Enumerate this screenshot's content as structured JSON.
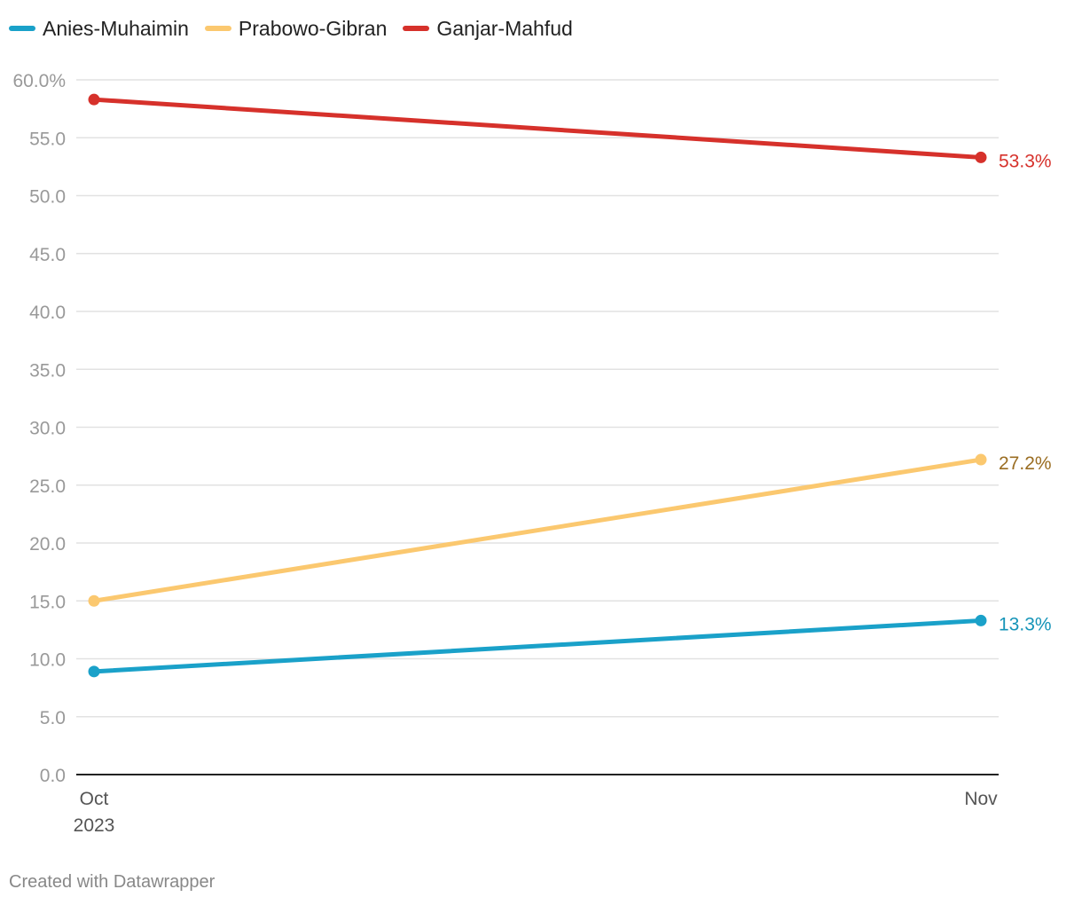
{
  "colors": {
    "Anies-Muhaimin": "#1aa1c9",
    "Prabowo-Gibran": "#fbc86f",
    "Ganjar-Mahfud": "#d6312b",
    "label_Anies-Muhaimin": "#1594b8",
    "label_Prabowo-Gibran": "#9a6d22",
    "label_Ganjar-Mahfud": "#d6312b",
    "grid": "#e2e2e2",
    "axis": "#222222",
    "tick": "#999999"
  },
  "chart_data": {
    "type": "line",
    "x": [
      "Oct",
      "Nov"
    ],
    "x_sublabels": [
      "2023",
      ""
    ],
    "series": [
      {
        "name": "Anies-Muhaimin",
        "values": [
          8.9,
          13.3
        ],
        "end_label": "13.3%"
      },
      {
        "name": "Prabowo-Gibran",
        "values": [
          15.0,
          27.2
        ],
        "end_label": "27.2%"
      },
      {
        "name": "Ganjar-Mahfud",
        "values": [
          58.3,
          53.3
        ],
        "end_label": "53.3%"
      }
    ],
    "ylim": [
      0,
      60
    ],
    "y_ticks": [
      0,
      5,
      10,
      15,
      20,
      25,
      30,
      35,
      40,
      45,
      50,
      55,
      60
    ],
    "y_tick_labels": [
      "0.0",
      "5.0",
      "10.0",
      "15.0",
      "20.0",
      "25.0",
      "30.0",
      "35.0",
      "40.0",
      "45.0",
      "50.0",
      "55.0",
      "60.0%"
    ],
    "grid": true,
    "legend": "top-left"
  },
  "footer": {
    "credit": "Created with Datawrapper"
  }
}
